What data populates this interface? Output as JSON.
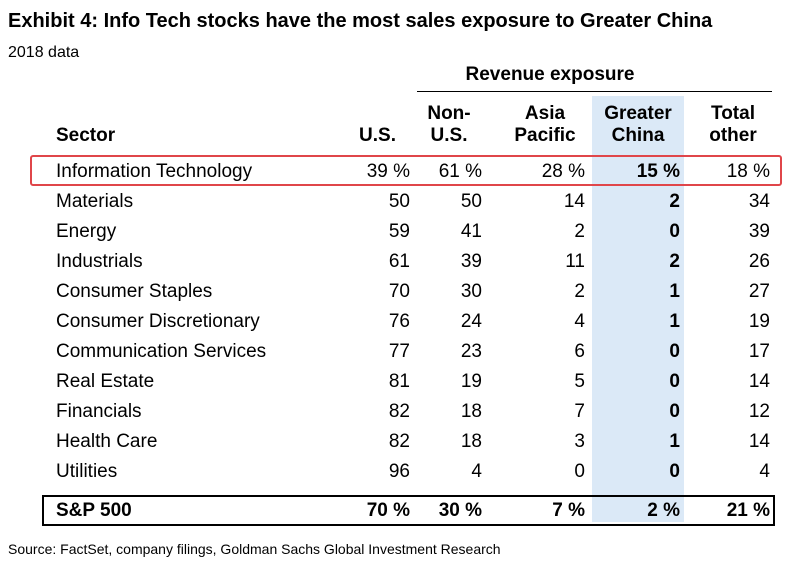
{
  "chart_data": {
    "type": "table",
    "title": "Exhibit 4: Info Tech stocks have the most sales exposure to Greater China",
    "subtitle": "2018 data",
    "group_header": "Revenue exposure",
    "columns": [
      {
        "key": "sector",
        "label_lines": [
          "Sector"
        ]
      },
      {
        "key": "us",
        "label_lines": [
          "U.S."
        ]
      },
      {
        "key": "non_us",
        "label_lines": [
          "Non-",
          "U.S."
        ]
      },
      {
        "key": "asia_pacific",
        "label_lines": [
          "Asia",
          "Pacific"
        ]
      },
      {
        "key": "greater_china",
        "label_lines": [
          "Greater",
          "China"
        ]
      },
      {
        "key": "total_other",
        "label_lines": [
          "Total",
          "other"
        ]
      }
    ],
    "rows": [
      {
        "sector": "Information Technology",
        "us": "39 %",
        "non_us": "61 %",
        "asia_pacific": "28 %",
        "greater_china": "15 %",
        "total_other": "18 %"
      },
      {
        "sector": "Materials",
        "us": "50",
        "non_us": "50",
        "asia_pacific": "14",
        "greater_china": "2",
        "total_other": "34"
      },
      {
        "sector": "Energy",
        "us": "59",
        "non_us": "41",
        "asia_pacific": "2",
        "greater_china": "0",
        "total_other": "39"
      },
      {
        "sector": "Industrials",
        "us": "61",
        "non_us": "39",
        "asia_pacific": "11",
        "greater_china": "2",
        "total_other": "26"
      },
      {
        "sector": "Consumer Staples",
        "us": "70",
        "non_us": "30",
        "asia_pacific": "2",
        "greater_china": "1",
        "total_other": "27"
      },
      {
        "sector": "Consumer Discretionary",
        "us": "76",
        "non_us": "24",
        "asia_pacific": "4",
        "greater_china": "1",
        "total_other": "19"
      },
      {
        "sector": "Communication Services",
        "us": "77",
        "non_us": "23",
        "asia_pacific": "6",
        "greater_china": "0",
        "total_other": "17"
      },
      {
        "sector": "Real Estate",
        "us": "81",
        "non_us": "19",
        "asia_pacific": "5",
        "greater_china": "0",
        "total_other": "14"
      },
      {
        "sector": "Financials",
        "us": "82",
        "non_us": "18",
        "asia_pacific": "7",
        "greater_china": "0",
        "total_other": "12"
      },
      {
        "sector": "Health Care",
        "us": "82",
        "non_us": "18",
        "asia_pacific": "3",
        "greater_china": "1",
        "total_other": "14"
      },
      {
        "sector": "Utilities",
        "us": "96",
        "non_us": "4",
        "asia_pacific": "0",
        "greater_china": "0",
        "total_other": "4"
      }
    ],
    "total_row": {
      "sector": "S&P 500",
      "us": "70 %",
      "non_us": "30 %",
      "asia_pacific": "7 %",
      "greater_china": "2 %",
      "total_other": "21 %"
    },
    "highlighted_row": "Information Technology",
    "highlighted_column": "Greater China",
    "highlight_color": "#e0464a",
    "column_band_color": "#dbe9f7",
    "source": "Source: FactSet, company filings, Goldman Sachs Global Investment Research"
  }
}
